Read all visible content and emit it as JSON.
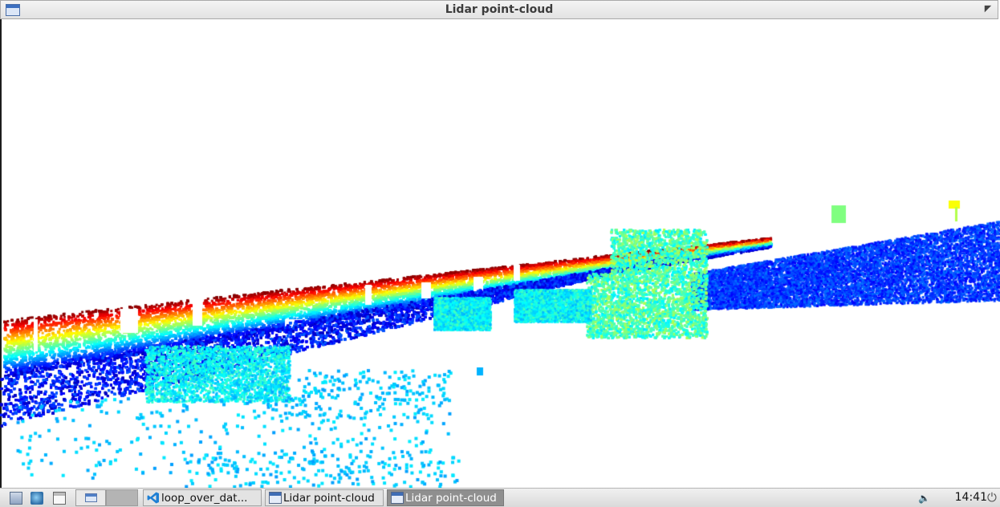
{
  "window": {
    "title": "Lidar point-cloud"
  },
  "taskbar": {
    "tasks": [
      {
        "label": "loop_over_dat...",
        "icon": "vscode-icon",
        "active": false
      },
      {
        "label": "Lidar point-cloud",
        "icon": "window-icon",
        "active": false
      },
      {
        "label": "Lidar point-cloud",
        "icon": "window-icon",
        "active": true
      }
    ],
    "clock": "14:41"
  },
  "colors": {
    "colormap": "jet",
    "background": "#ffffff",
    "taskbar": "#e3e3e3",
    "active_task": "#8f8f8f"
  }
}
